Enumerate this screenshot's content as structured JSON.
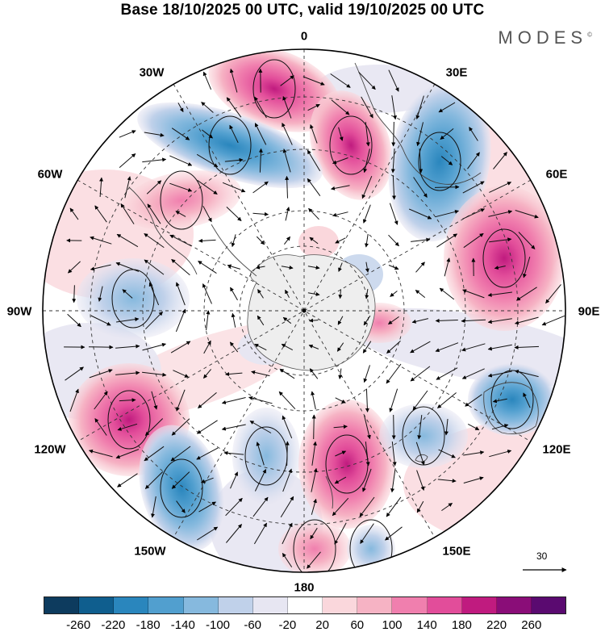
{
  "title": "Base 18/10/2025 00 UTC, valid 19/10/2025 00 UTC",
  "brand": "MODES",
  "brand_mark": "©",
  "longitude_labels": {
    "lon_0": "0",
    "lon_30e": "30E",
    "lon_60e": "60E",
    "lon_90e": "90E",
    "lon_120e": "120E",
    "lon_150e": "150E",
    "lon_180": "180",
    "lon_150w": "150W",
    "lon_120w": "120W",
    "lon_90w": "90W",
    "lon_60w": "60W",
    "lon_30w": "30W"
  },
  "wind_reference": {
    "label": "30"
  },
  "colorbar": {
    "colors": [
      "#0d3b5e",
      "#0f5e8e",
      "#2a86bd",
      "#519fcf",
      "#86b9de",
      "#c0d1ea",
      "#e7e6f2",
      "#ffffff",
      "#fad7dc",
      "#f6b3c4",
      "#f07fae",
      "#e24d9a",
      "#c01b7f",
      "#8a0d78",
      "#5a0a70"
    ],
    "ticks": [
      "-260",
      "-220",
      "-180",
      "-140",
      "-100",
      "-60",
      "-20",
      "20",
      "60",
      "100",
      "140",
      "180",
      "220",
      "260"
    ]
  }
}
